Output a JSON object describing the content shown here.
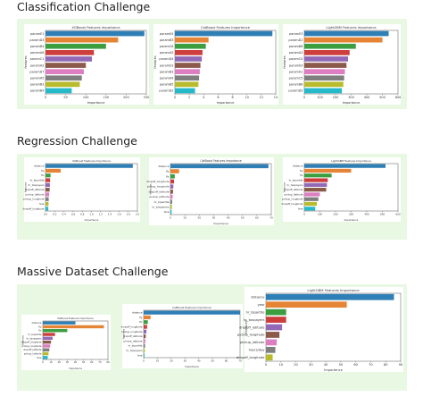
{
  "sections": [
    {
      "title": "Classification Challenge"
    },
    {
      "title": "Regression Challenge"
    },
    {
      "title": "Massive Dataset Challenge"
    }
  ],
  "colors": {
    "panel_bg": "#e9f8e3",
    "palette": [
      "#2e7fb5",
      "#e48434",
      "#3c9e3f",
      "#cd3d3c",
      "#9269b6",
      "#8b5a4a",
      "#dc7ec1",
      "#7f7f7f",
      "#b8bb2c",
      "#25b9ca"
    ]
  },
  "chart_data": [
    {
      "type": "bar",
      "orientation": "horizontal",
      "title": "XGBoost Features Importance",
      "xlabel": "Importance",
      "ylabel": "features",
      "categories": [
        "paramE1",
        "paramD3",
        "paramB4",
        "paramA6",
        "paramC1",
        "paramA2",
        "paramD7",
        "paramA5",
        "paramB3",
        "paramB9"
      ],
      "values": [
        245,
        180,
        150,
        120,
        115,
        100,
        95,
        90,
        85,
        65
      ],
      "xlim": [
        0,
        250
      ],
      "xticks": [
        "0",
        "50",
        "100",
        "150",
        "200",
        "250"
      ]
    },
    {
      "type": "bar",
      "orientation": "horizontal",
      "title": "CatBoost Features Importance",
      "xlabel": "Importance",
      "ylabel": "features",
      "categories": [
        "paramE4",
        "paramB3",
        "paramC8",
        "paramA5",
        "paramD4",
        "paramE3",
        "paramB3",
        "paramA9",
        "paramB5",
        "paramD2"
      ],
      "values": [
        14.5,
        5.0,
        4.6,
        4.1,
        4.0,
        3.8,
        3.7,
        3.6,
        3.5,
        3.0
      ],
      "xlim": [
        0,
        15
      ],
      "xticks": [
        "0",
        "2",
        "4",
        "6",
        "8",
        "10",
        "12",
        "14"
      ]
    },
    {
      "type": "bar",
      "orientation": "horizontal",
      "title": "LightGBM Features Importance",
      "xlabel": "Importance",
      "ylabel": "features",
      "categories": [
        "paramE3",
        "paramD1",
        "paramB6",
        "paramA3",
        "paramC4",
        "paramE9",
        "paramA1",
        "paramC5",
        "paramB8",
        "paramD5"
      ],
      "values": [
        540,
        500,
        330,
        290,
        280,
        270,
        260,
        255,
        250,
        240
      ],
      "xlim": [
        0,
        600
      ],
      "xticks": [
        "0",
        "100",
        "200",
        "300",
        "400",
        "500",
        "600"
      ]
    },
    {
      "type": "bar",
      "orientation": "horizontal",
      "title": "XGBoost Features Importance",
      "xlabel": "Importance",
      "ylabel": "features",
      "categories": [
        "distance",
        "fly",
        "flx",
        "hr_bipartite",
        "hr_taxpayers",
        "dropoff_latitude",
        "pickup_latitude",
        "pickup_longitude",
        "fare",
        "dropoff_longitude"
      ],
      "values": [
        1900,
        330,
        110,
        100,
        95,
        90,
        80,
        70,
        65,
        60
      ],
      "xlim": [
        0,
        2000
      ],
      "xticks": [
        "0.0",
        "0.2",
        "0.4",
        "0.6",
        "0.8",
        "1.0",
        "1.2",
        "1.4",
        "1.6",
        "1.8",
        "2.0"
      ]
    },
    {
      "type": "bar",
      "orientation": "horizontal",
      "title": "CatBoost Features Importance",
      "xlabel": "Importance",
      "ylabel": "features",
      "categories": [
        "distance",
        "fly",
        "flx",
        "dropoff_longitude",
        "pickup_longitude",
        "dropoff_latitude",
        "pickup_latitude",
        "hr_bipartite",
        "hr_taxpayers",
        "fare"
      ],
      "values": [
        68,
        6,
        3,
        2.5,
        2,
        1.8,
        1.5,
        1.2,
        1,
        0.8
      ],
      "xlim": [
        0,
        70
      ],
      "xticks": [
        "0",
        "10",
        "20",
        "30",
        "40",
        "50",
        "60",
        "70"
      ]
    },
    {
      "type": "bar",
      "orientation": "horizontal",
      "title": "LightGBM Features Importance",
      "xlabel": "Importance",
      "ylabel": "features",
      "categories": [
        "distance",
        "fly",
        "flx",
        "hr_bipartite",
        "hr_taxpayers",
        "dropoff_latitude",
        "pickup_latitude",
        "pickup_longitude",
        "dropoff_longitude",
        "fare"
      ],
      "values": [
        520,
        300,
        175,
        150,
        145,
        140,
        100,
        90,
        80,
        70
      ],
      "xlim": [
        0,
        600
      ],
      "xticks": [
        "0",
        "100",
        "200",
        "300",
        "400",
        "500",
        "600"
      ]
    },
    {
      "type": "bar",
      "orientation": "horizontal",
      "title": "XGBoost Features Importance",
      "xlabel": "Importance",
      "ylabel": "features",
      "categories": [
        "distance",
        "fly",
        "flx",
        "hr_bipartite",
        "hr_taxpayers",
        "dropoff_longitude",
        "pickup_longitude",
        "dropoff_latitude",
        "pickup_latitude",
        "fare"
      ],
      "values": [
        40,
        75,
        30,
        15,
        12,
        10,
        9,
        8,
        7,
        6
      ],
      "xlim": [
        0,
        80
      ],
      "xticks": [
        "0",
        "10",
        "20",
        "30",
        "40",
        "50",
        "60",
        "70",
        "80"
      ]
    },
    {
      "type": "bar",
      "orientation": "horizontal",
      "title": "CatBoost Features Importance",
      "xlabel": "Importance",
      "ylabel": "features",
      "categories": [
        "distance",
        "fly",
        "flx",
        "dropoff_longitude",
        "pickup_longitude",
        "dropoff_latitude",
        "pickup_latitude",
        "hr_bipartite",
        "hr_taxpayers",
        "fare"
      ],
      "values": [
        70,
        5,
        3,
        2.5,
        2,
        1.5,
        1.2,
        1,
        0.8,
        0.6
      ],
      "xlim": [
        0,
        70
      ],
      "xticks": [
        "0",
        "10",
        "20",
        "30",
        "40",
        "50",
        "60",
        "70"
      ]
    },
    {
      "type": "bar",
      "orientation": "horizontal",
      "title": "LightGBM Features Importance",
      "xlabel": "Importance",
      "ylabel": "Features",
      "categories": [
        "distance",
        "year",
        "hr_bipartite",
        "hr_taxpayers",
        "dropoff_latitude",
        "pickup_longitude",
        "pickup_latitude",
        "hours/day",
        "dropoff_longitude"
      ],
      "values": [
        95,
        60,
        15,
        15,
        12,
        10,
        8,
        7,
        5
      ],
      "xlim": [
        0,
        100
      ],
      "xticks": [
        "0",
        "10",
        "20",
        "30",
        "40",
        "50",
        "60",
        "70",
        "80",
        "90"
      ]
    }
  ]
}
